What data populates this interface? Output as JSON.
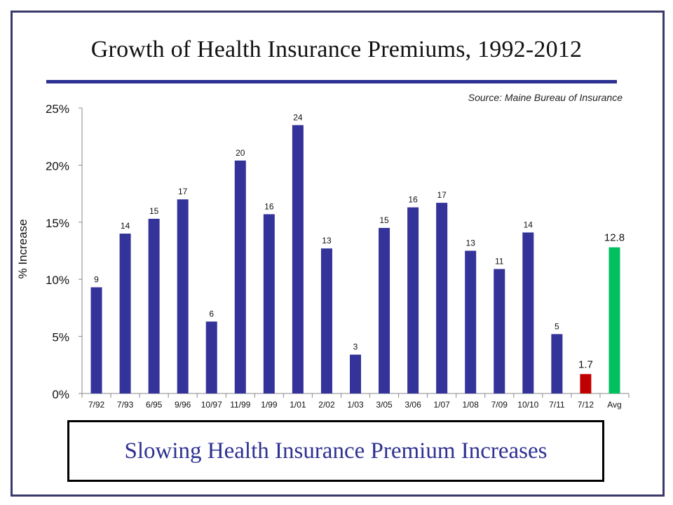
{
  "slide": {
    "title": "Growth of Health Insurance Premiums, 1992-2012",
    "source": "Source: Maine Bureau of Insurance",
    "callout": "Slowing Health Insurance Premium Increases",
    "frame_color": "#3a3a6a",
    "rule_color": "#2e3192"
  },
  "chart_data": {
    "type": "bar",
    "title": "Growth of Health Insurance Premiums, 1992-2012",
    "xlabel": "",
    "ylabel": "% Increase",
    "ylim": [
      0,
      25
    ],
    "yticks": [
      0,
      5,
      10,
      15,
      20,
      25
    ],
    "ytick_labels": [
      "0%",
      "5%",
      "10%",
      "15%",
      "20%",
      "25%"
    ],
    "grid": false,
    "legend": "none",
    "categories": [
      "7/92",
      "7/93",
      "6/95",
      "9/96",
      "10/97",
      "11/99",
      "1/99",
      "1/01",
      "2/02",
      "1/03",
      "3/05",
      "3/06",
      "1/07",
      "1/08",
      "7/09",
      "10/10",
      "7/11",
      "7/12",
      "Avg"
    ],
    "values": [
      9.3,
      14.0,
      15.3,
      17.0,
      6.3,
      20.4,
      15.7,
      23.5,
      12.7,
      3.4,
      14.5,
      16.3,
      16.7,
      12.5,
      10.9,
      14.1,
      5.2,
      1.7,
      12.8
    ],
    "data_labels": [
      "9",
      "14",
      "15",
      "17",
      "6",
      "20",
      "16",
      "24",
      "13",
      "3",
      "15",
      "16",
      "17",
      "13",
      "11",
      "14",
      "5",
      "1.7",
      "12.8"
    ],
    "bar_colors": [
      "#333399",
      "#333399",
      "#333399",
      "#333399",
      "#333399",
      "#333399",
      "#333399",
      "#333399",
      "#333399",
      "#333399",
      "#333399",
      "#333399",
      "#333399",
      "#333399",
      "#333399",
      "#333399",
      "#333399",
      "#c00000",
      "#00c060"
    ],
    "source": "Source: Maine Bureau of Insurance"
  }
}
